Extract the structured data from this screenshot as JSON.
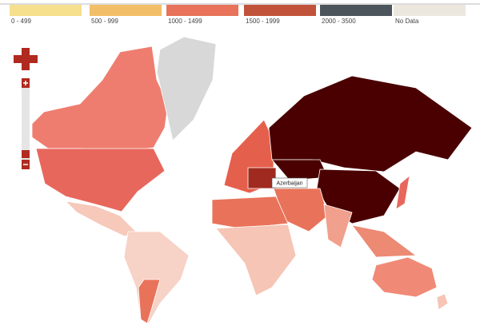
{
  "legend": {
    "items": [
      {
        "label": "0 - 499",
        "color": "#f6e08e"
      },
      {
        "label": "500 - 999",
        "color": "#f2bf68"
      },
      {
        "label": "1000 - 1499",
        "color": "#e8735a"
      },
      {
        "label": "1500 - 1999",
        "color": "#c1533b"
      },
      {
        "label": "2000 - 3500",
        "color": "#4c545c"
      },
      {
        "label": "No Data",
        "color": "#ece7de"
      }
    ]
  },
  "tooltip": "Azerbaijan"
}
